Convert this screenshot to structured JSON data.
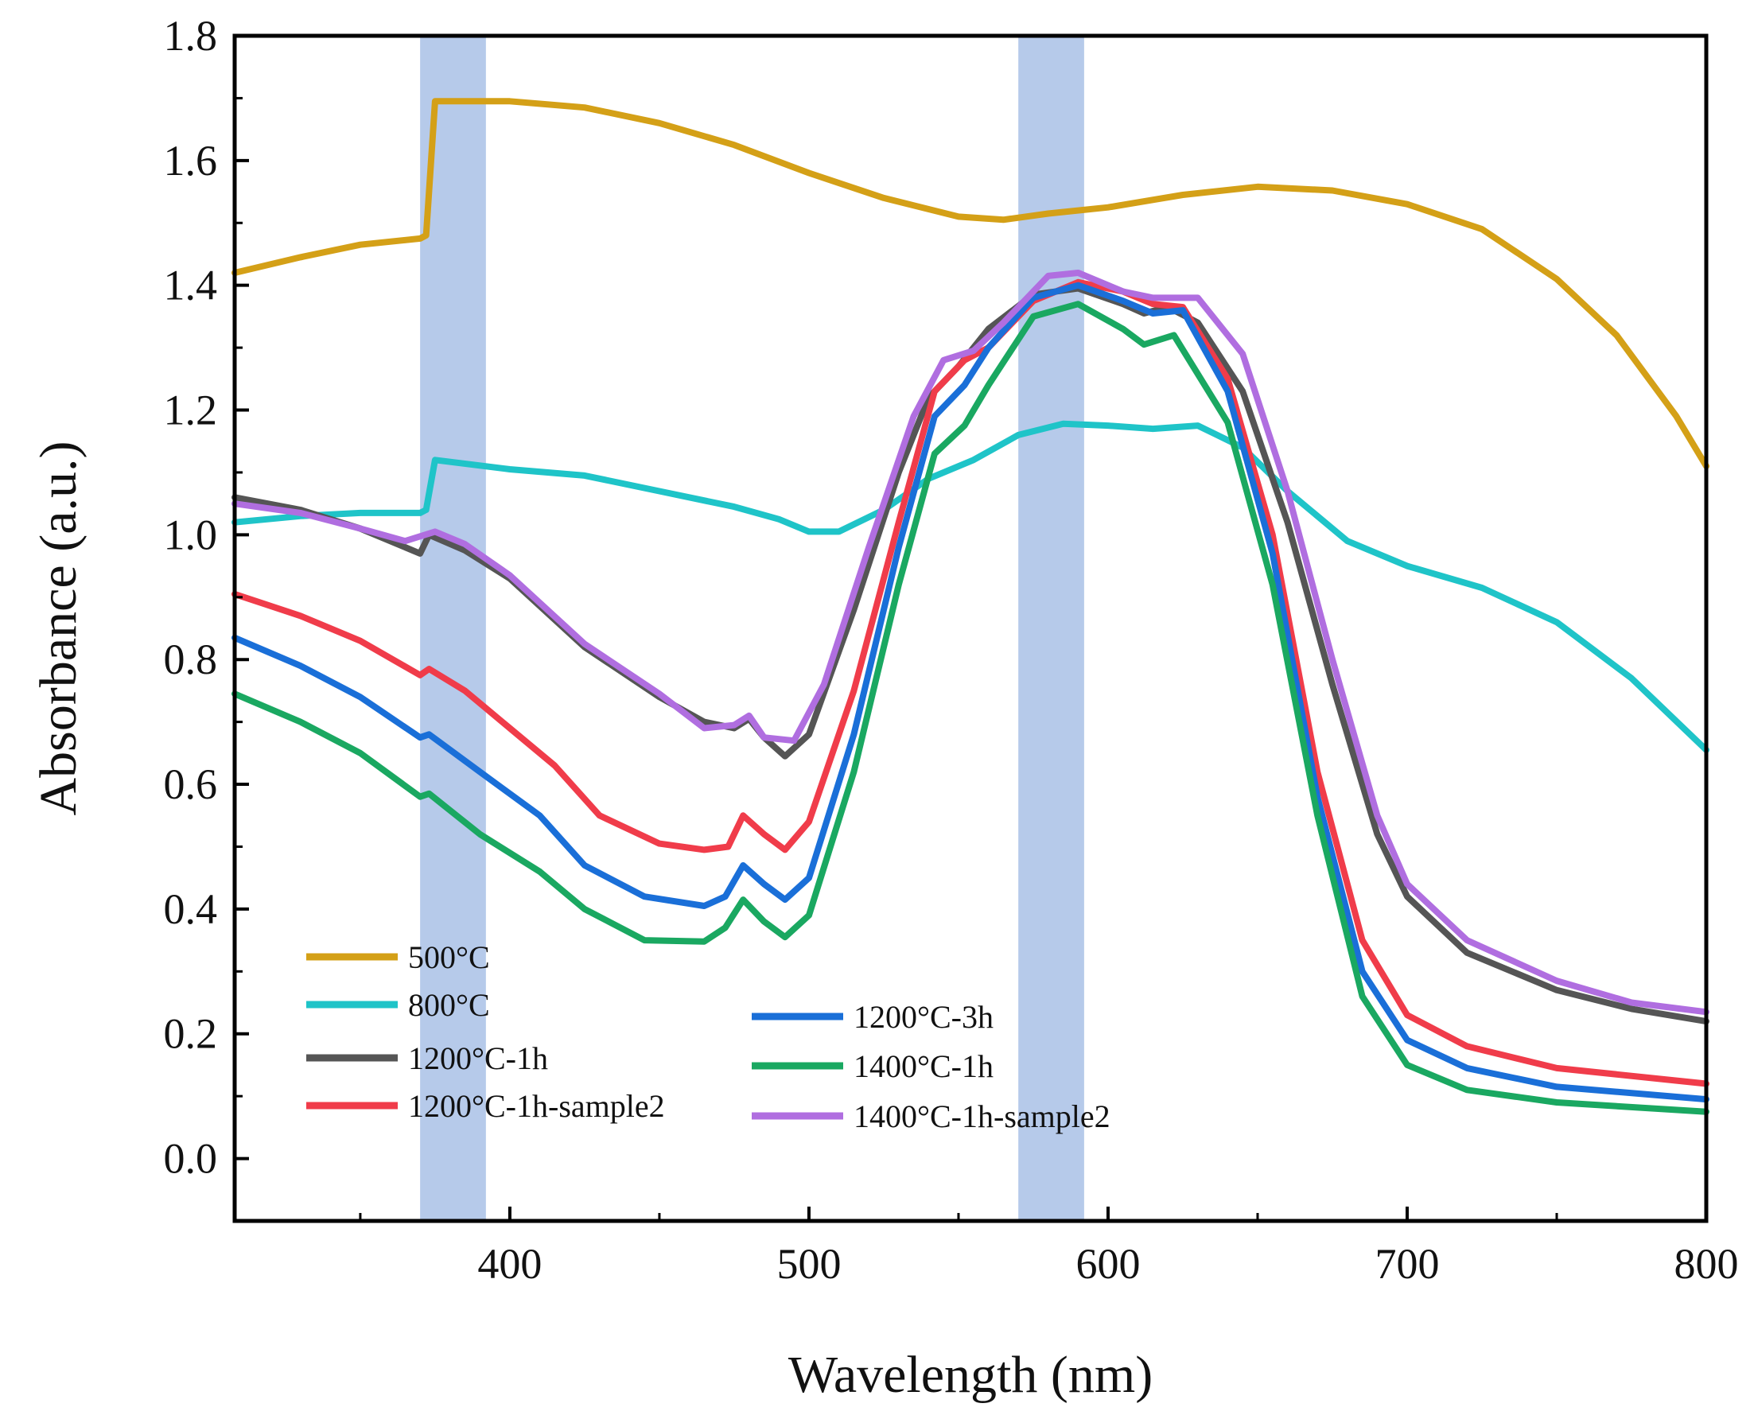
{
  "chart_data": {
    "type": "line",
    "title": "",
    "xlabel": "Wavelength (nm)",
    "ylabel": "Absorbance (a.u.)",
    "xlim": [
      308,
      800
    ],
    "ylim": [
      -0.1,
      1.8
    ],
    "xticks": [
      400,
      500,
      600,
      700,
      800
    ],
    "xtick_labels": [
      "400",
      "500",
      "600",
      "700",
      "800"
    ],
    "yticks": [
      0.0,
      0.2,
      0.4,
      0.6,
      0.8,
      1.0,
      1.2,
      1.4,
      1.6,
      1.8
    ],
    "ytick_labels": [
      "0.0",
      "0.2",
      "0.4",
      "0.6",
      "0.8",
      "1.0",
      "1.2",
      "1.4",
      "1.6",
      "1.8"
    ],
    "grid": false,
    "legend_position": "bottom-left",
    "highlight_bands": [
      {
        "x0": 370,
        "x1": 392,
        "color": "#9db8e3"
      },
      {
        "x0": 570,
        "x1": 592,
        "color": "#9db8e3"
      }
    ],
    "series": [
      {
        "name": "500°C",
        "color": "#d4a017",
        "points": [
          [
            308,
            1.42
          ],
          [
            330,
            1.445
          ],
          [
            350,
            1.465
          ],
          [
            370,
            1.475
          ],
          [
            372,
            1.48
          ],
          [
            375,
            1.695
          ],
          [
            400,
            1.695
          ],
          [
            425,
            1.685
          ],
          [
            450,
            1.66
          ],
          [
            475,
            1.625
          ],
          [
            500,
            1.58
          ],
          [
            525,
            1.54
          ],
          [
            550,
            1.51
          ],
          [
            565,
            1.505
          ],
          [
            580,
            1.515
          ],
          [
            600,
            1.525
          ],
          [
            625,
            1.545
          ],
          [
            650,
            1.558
          ],
          [
            675,
            1.552
          ],
          [
            700,
            1.53
          ],
          [
            725,
            1.49
          ],
          [
            750,
            1.41
          ],
          [
            770,
            1.32
          ],
          [
            790,
            1.19
          ],
          [
            800,
            1.11
          ]
        ]
      },
      {
        "name": "800°C",
        "color": "#1fc4c8",
        "points": [
          [
            308,
            1.02
          ],
          [
            330,
            1.03
          ],
          [
            350,
            1.035
          ],
          [
            370,
            1.035
          ],
          [
            372,
            1.04
          ],
          [
            375,
            1.12
          ],
          [
            400,
            1.105
          ],
          [
            425,
            1.095
          ],
          [
            450,
            1.07
          ],
          [
            475,
            1.045
          ],
          [
            490,
            1.025
          ],
          [
            500,
            1.005
          ],
          [
            510,
            1.005
          ],
          [
            525,
            1.04
          ],
          [
            540,
            1.09
          ],
          [
            555,
            1.12
          ],
          [
            570,
            1.16
          ],
          [
            585,
            1.178
          ],
          [
            600,
            1.175
          ],
          [
            615,
            1.17
          ],
          [
            630,
            1.175
          ],
          [
            645,
            1.14
          ],
          [
            660,
            1.07
          ],
          [
            680,
            0.99
          ],
          [
            700,
            0.95
          ],
          [
            725,
            0.915
          ],
          [
            750,
            0.86
          ],
          [
            775,
            0.77
          ],
          [
            800,
            0.655
          ]
        ]
      },
      {
        "name": "1200°C-1h",
        "color": "#555555",
        "points": [
          [
            308,
            1.06
          ],
          [
            330,
            1.04
          ],
          [
            350,
            1.01
          ],
          [
            370,
            0.97
          ],
          [
            373,
            1.0
          ],
          [
            385,
            0.975
          ],
          [
            400,
            0.93
          ],
          [
            425,
            0.82
          ],
          [
            450,
            0.74
          ],
          [
            465,
            0.7
          ],
          [
            475,
            0.69
          ],
          [
            480,
            0.705
          ],
          [
            485,
            0.675
          ],
          [
            492,
            0.645
          ],
          [
            500,
            0.68
          ],
          [
            515,
            0.88
          ],
          [
            530,
            1.1
          ],
          [
            540,
            1.22
          ],
          [
            550,
            1.27
          ],
          [
            560,
            1.33
          ],
          [
            575,
            1.385
          ],
          [
            590,
            1.395
          ],
          [
            605,
            1.37
          ],
          [
            612,
            1.355
          ],
          [
            620,
            1.365
          ],
          [
            630,
            1.34
          ],
          [
            645,
            1.23
          ],
          [
            660,
            1.02
          ],
          [
            675,
            0.76
          ],
          [
            690,
            0.52
          ],
          [
            700,
            0.42
          ],
          [
            720,
            0.33
          ],
          [
            750,
            0.27
          ],
          [
            775,
            0.24
          ],
          [
            800,
            0.22
          ]
        ]
      },
      {
        "name": "1200°C-1h-sample2",
        "color": "#f03c4a",
        "points": [
          [
            308,
            0.905
          ],
          [
            330,
            0.87
          ],
          [
            350,
            0.83
          ],
          [
            370,
            0.775
          ],
          [
            373,
            0.785
          ],
          [
            385,
            0.75
          ],
          [
            400,
            0.69
          ],
          [
            415,
            0.63
          ],
          [
            430,
            0.55
          ],
          [
            450,
            0.505
          ],
          [
            465,
            0.495
          ],
          [
            473,
            0.5
          ],
          [
            478,
            0.55
          ],
          [
            485,
            0.52
          ],
          [
            492,
            0.495
          ],
          [
            500,
            0.54
          ],
          [
            515,
            0.75
          ],
          [
            530,
            1.02
          ],
          [
            542,
            1.23
          ],
          [
            552,
            1.28
          ],
          [
            560,
            1.3
          ],
          [
            575,
            1.375
          ],
          [
            590,
            1.405
          ],
          [
            605,
            1.39
          ],
          [
            615,
            1.37
          ],
          [
            625,
            1.365
          ],
          [
            640,
            1.25
          ],
          [
            655,
            1.0
          ],
          [
            670,
            0.62
          ],
          [
            685,
            0.35
          ],
          [
            700,
            0.23
          ],
          [
            720,
            0.18
          ],
          [
            750,
            0.145
          ],
          [
            800,
            0.12
          ]
        ]
      },
      {
        "name": "1200°C-3h",
        "color": "#1a6fd8",
        "points": [
          [
            308,
            0.835
          ],
          [
            330,
            0.79
          ],
          [
            350,
            0.74
          ],
          [
            370,
            0.675
          ],
          [
            373,
            0.68
          ],
          [
            390,
            0.62
          ],
          [
            410,
            0.55
          ],
          [
            425,
            0.47
          ],
          [
            445,
            0.42
          ],
          [
            465,
            0.405
          ],
          [
            472,
            0.42
          ],
          [
            478,
            0.47
          ],
          [
            485,
            0.44
          ],
          [
            492,
            0.415
          ],
          [
            500,
            0.45
          ],
          [
            515,
            0.68
          ],
          [
            530,
            0.98
          ],
          [
            542,
            1.19
          ],
          [
            552,
            1.24
          ],
          [
            560,
            1.3
          ],
          [
            575,
            1.38
          ],
          [
            590,
            1.4
          ],
          [
            605,
            1.375
          ],
          [
            615,
            1.355
          ],
          [
            625,
            1.36
          ],
          [
            640,
            1.23
          ],
          [
            655,
            0.97
          ],
          [
            670,
            0.58
          ],
          [
            685,
            0.3
          ],
          [
            700,
            0.19
          ],
          [
            720,
            0.145
          ],
          [
            750,
            0.115
          ],
          [
            800,
            0.095
          ]
        ]
      },
      {
        "name": "1400°C-1h",
        "color": "#1aa861",
        "points": [
          [
            308,
            0.745
          ],
          [
            330,
            0.7
          ],
          [
            350,
            0.65
          ],
          [
            370,
            0.58
          ],
          [
            373,
            0.585
          ],
          [
            390,
            0.52
          ],
          [
            410,
            0.46
          ],
          [
            425,
            0.4
          ],
          [
            445,
            0.35
          ],
          [
            465,
            0.348
          ],
          [
            472,
            0.37
          ],
          [
            478,
            0.415
          ],
          [
            485,
            0.38
          ],
          [
            492,
            0.355
          ],
          [
            500,
            0.39
          ],
          [
            515,
            0.62
          ],
          [
            530,
            0.92
          ],
          [
            542,
            1.13
          ],
          [
            552,
            1.175
          ],
          [
            560,
            1.24
          ],
          [
            575,
            1.35
          ],
          [
            590,
            1.37
          ],
          [
            605,
            1.33
          ],
          [
            612,
            1.305
          ],
          [
            622,
            1.32
          ],
          [
            640,
            1.18
          ],
          [
            655,
            0.92
          ],
          [
            670,
            0.55
          ],
          [
            685,
            0.26
          ],
          [
            700,
            0.15
          ],
          [
            720,
            0.11
          ],
          [
            750,
            0.09
          ],
          [
            800,
            0.075
          ]
        ]
      },
      {
        "name": "1400°C-1h-sample2",
        "color": "#b06ee0",
        "points": [
          [
            308,
            1.05
          ],
          [
            330,
            1.035
          ],
          [
            350,
            1.01
          ],
          [
            365,
            0.99
          ],
          [
            375,
            1.005
          ],
          [
            385,
            0.985
          ],
          [
            400,
            0.935
          ],
          [
            425,
            0.825
          ],
          [
            450,
            0.745
          ],
          [
            465,
            0.69
          ],
          [
            475,
            0.695
          ],
          [
            480,
            0.71
          ],
          [
            485,
            0.675
          ],
          [
            495,
            0.67
          ],
          [
            505,
            0.76
          ],
          [
            520,
            0.98
          ],
          [
            535,
            1.19
          ],
          [
            545,
            1.28
          ],
          [
            555,
            1.295
          ],
          [
            565,
            1.34
          ],
          [
            580,
            1.415
          ],
          [
            590,
            1.42
          ],
          [
            605,
            1.39
          ],
          [
            615,
            1.38
          ],
          [
            630,
            1.38
          ],
          [
            645,
            1.29
          ],
          [
            660,
            1.07
          ],
          [
            675,
            0.8
          ],
          [
            690,
            0.55
          ],
          [
            700,
            0.44
          ],
          [
            720,
            0.35
          ],
          [
            750,
            0.285
          ],
          [
            775,
            0.25
          ],
          [
            800,
            0.235
          ]
        ]
      }
    ]
  }
}
